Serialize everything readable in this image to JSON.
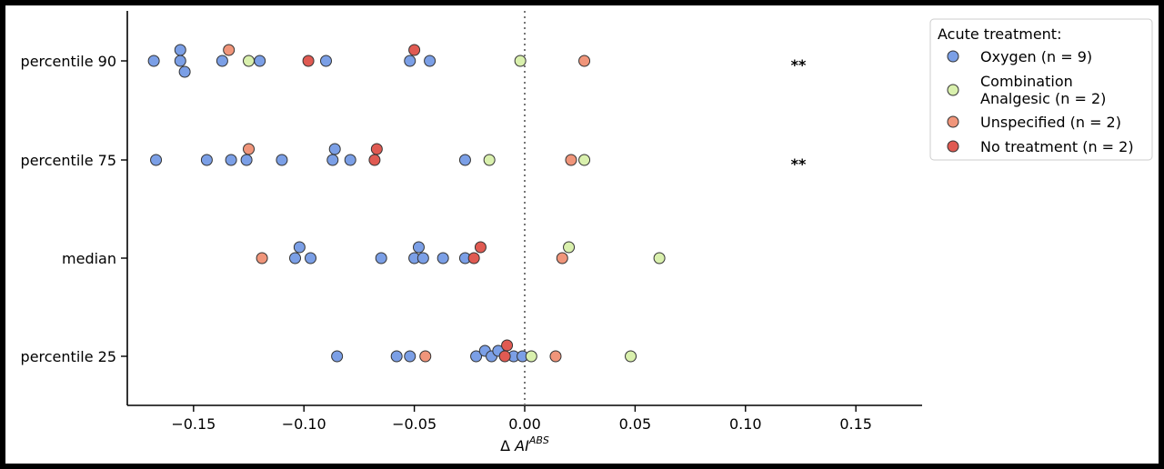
{
  "chart_data": {
    "type": "scatter",
    "categories": [
      "percentile 90",
      "percentile 75",
      "median",
      "percentile 25"
    ],
    "xlim": [
      -0.18,
      0.18
    ],
    "xticks": [
      -0.15,
      -0.1,
      -0.05,
      0.0,
      0.05,
      0.1,
      0.15
    ],
    "xtick_labels": [
      "−0.15",
      "−0.10",
      "−0.05",
      "0.00",
      "0.05",
      "0.10",
      "0.15"
    ],
    "xlabel_prefix": "Δ ",
    "xlabel_main": "AI",
    "xlabel_sup": "ABS",
    "reference_line": 0.0,
    "grid": false,
    "legend": {
      "title": "Acute treatment:",
      "placement": "top-right",
      "entries": [
        {
          "label": "Oxygen (n = 9)"
        },
        {
          "label": "Combination\nAnalgesic (n = 2)"
        },
        {
          "label": "Unspecified (n = 2)"
        },
        {
          "label": "No treatment (n = 2)"
        }
      ]
    },
    "annotations": [
      {
        "category": "percentile 90",
        "x": 0.124,
        "text": "**"
      },
      {
        "category": "percentile 75",
        "x": 0.124,
        "text": "**"
      }
    ],
    "series": [
      {
        "name": "Oxygen (n = 9)",
        "color": "#7b9fe6",
        "points": [
          {
            "category": "percentile 90",
            "x": -0.168,
            "jitter": 0
          },
          {
            "category": "percentile 90",
            "x": -0.156,
            "jitter": -1
          },
          {
            "category": "percentile 90",
            "x": -0.156,
            "jitter": 0
          },
          {
            "category": "percentile 90",
            "x": -0.154,
            "jitter": 1
          },
          {
            "category": "percentile 90",
            "x": -0.137,
            "jitter": 0
          },
          {
            "category": "percentile 90",
            "x": -0.12,
            "jitter": 0
          },
          {
            "category": "percentile 90",
            "x": -0.09,
            "jitter": 0
          },
          {
            "category": "percentile 90",
            "x": -0.052,
            "jitter": 0
          },
          {
            "category": "percentile 90",
            "x": -0.043,
            "jitter": 0
          },
          {
            "category": "percentile 75",
            "x": -0.167,
            "jitter": 0
          },
          {
            "category": "percentile 75",
            "x": -0.144,
            "jitter": 0
          },
          {
            "category": "percentile 75",
            "x": -0.133,
            "jitter": 0
          },
          {
            "category": "percentile 75",
            "x": -0.126,
            "jitter": 0
          },
          {
            "category": "percentile 75",
            "x": -0.11,
            "jitter": 0
          },
          {
            "category": "percentile 75",
            "x": -0.086,
            "jitter": -1
          },
          {
            "category": "percentile 75",
            "x": -0.087,
            "jitter": 0
          },
          {
            "category": "percentile 75",
            "x": -0.079,
            "jitter": 0
          },
          {
            "category": "percentile 75",
            "x": -0.027,
            "jitter": 0
          },
          {
            "category": "median",
            "x": -0.102,
            "jitter": -1
          },
          {
            "category": "median",
            "x": -0.104,
            "jitter": 0
          },
          {
            "category": "median",
            "x": -0.097,
            "jitter": 0
          },
          {
            "category": "median",
            "x": -0.065,
            "jitter": 0
          },
          {
            "category": "median",
            "x": -0.048,
            "jitter": -1
          },
          {
            "category": "median",
            "x": -0.05,
            "jitter": 0
          },
          {
            "category": "median",
            "x": -0.046,
            "jitter": 0
          },
          {
            "category": "median",
            "x": -0.037,
            "jitter": 0
          },
          {
            "category": "median",
            "x": -0.027,
            "jitter": 0
          },
          {
            "category": "percentile 25",
            "x": -0.085,
            "jitter": 0
          },
          {
            "category": "percentile 25",
            "x": -0.058,
            "jitter": 0
          },
          {
            "category": "percentile 25",
            "x": -0.052,
            "jitter": 0
          },
          {
            "category": "percentile 25",
            "x": -0.022,
            "jitter": 0
          },
          {
            "category": "percentile 25",
            "x": -0.018,
            "jitter": -0.5
          },
          {
            "category": "percentile 25",
            "x": -0.015,
            "jitter": 0
          },
          {
            "category": "percentile 25",
            "x": -0.012,
            "jitter": -0.5
          },
          {
            "category": "percentile 25",
            "x": -0.005,
            "jitter": 0
          },
          {
            "category": "percentile 25",
            "x": -0.001,
            "jitter": 0
          }
        ]
      },
      {
        "name": "Combination Analgesic (n = 2)",
        "color": "#d9f0ad",
        "points": [
          {
            "category": "percentile 90",
            "x": -0.125,
            "jitter": 0
          },
          {
            "category": "percentile 90",
            "x": -0.002,
            "jitter": 0
          },
          {
            "category": "percentile 75",
            "x": -0.016,
            "jitter": 0
          },
          {
            "category": "percentile 75",
            "x": 0.027,
            "jitter": 0
          },
          {
            "category": "median",
            "x": 0.02,
            "jitter": -1
          },
          {
            "category": "median",
            "x": 0.061,
            "jitter": 0
          },
          {
            "category": "percentile 25",
            "x": 0.003,
            "jitter": 0
          },
          {
            "category": "percentile 25",
            "x": 0.048,
            "jitter": 0
          }
        ]
      },
      {
        "name": "Unspecified (n = 2)",
        "color": "#f0957a",
        "points": [
          {
            "category": "percentile 90",
            "x": -0.134,
            "jitter": -1
          },
          {
            "category": "percentile 90",
            "x": 0.027,
            "jitter": 0
          },
          {
            "category": "percentile 75",
            "x": -0.125,
            "jitter": -1
          },
          {
            "category": "percentile 75",
            "x": 0.021,
            "jitter": 0
          },
          {
            "category": "median",
            "x": -0.119,
            "jitter": 0
          },
          {
            "category": "median",
            "x": 0.017,
            "jitter": 0
          },
          {
            "category": "percentile 25",
            "x": -0.045,
            "jitter": 0
          },
          {
            "category": "percentile 25",
            "x": 0.014,
            "jitter": 0
          }
        ]
      },
      {
        "name": "No treatment (n = 2)",
        "color": "#e05a52",
        "points": [
          {
            "category": "percentile 90",
            "x": -0.098,
            "jitter": 0
          },
          {
            "category": "percentile 90",
            "x": -0.05,
            "jitter": -1
          },
          {
            "category": "percentile 75",
            "x": -0.067,
            "jitter": -1
          },
          {
            "category": "percentile 75",
            "x": -0.068,
            "jitter": 0
          },
          {
            "category": "median",
            "x": -0.02,
            "jitter": -1
          },
          {
            "category": "median",
            "x": -0.023,
            "jitter": 0
          },
          {
            "category": "percentile 25",
            "x": -0.008,
            "jitter": -1
          },
          {
            "category": "percentile 25",
            "x": -0.009,
            "jitter": 0
          }
        ]
      }
    ]
  }
}
